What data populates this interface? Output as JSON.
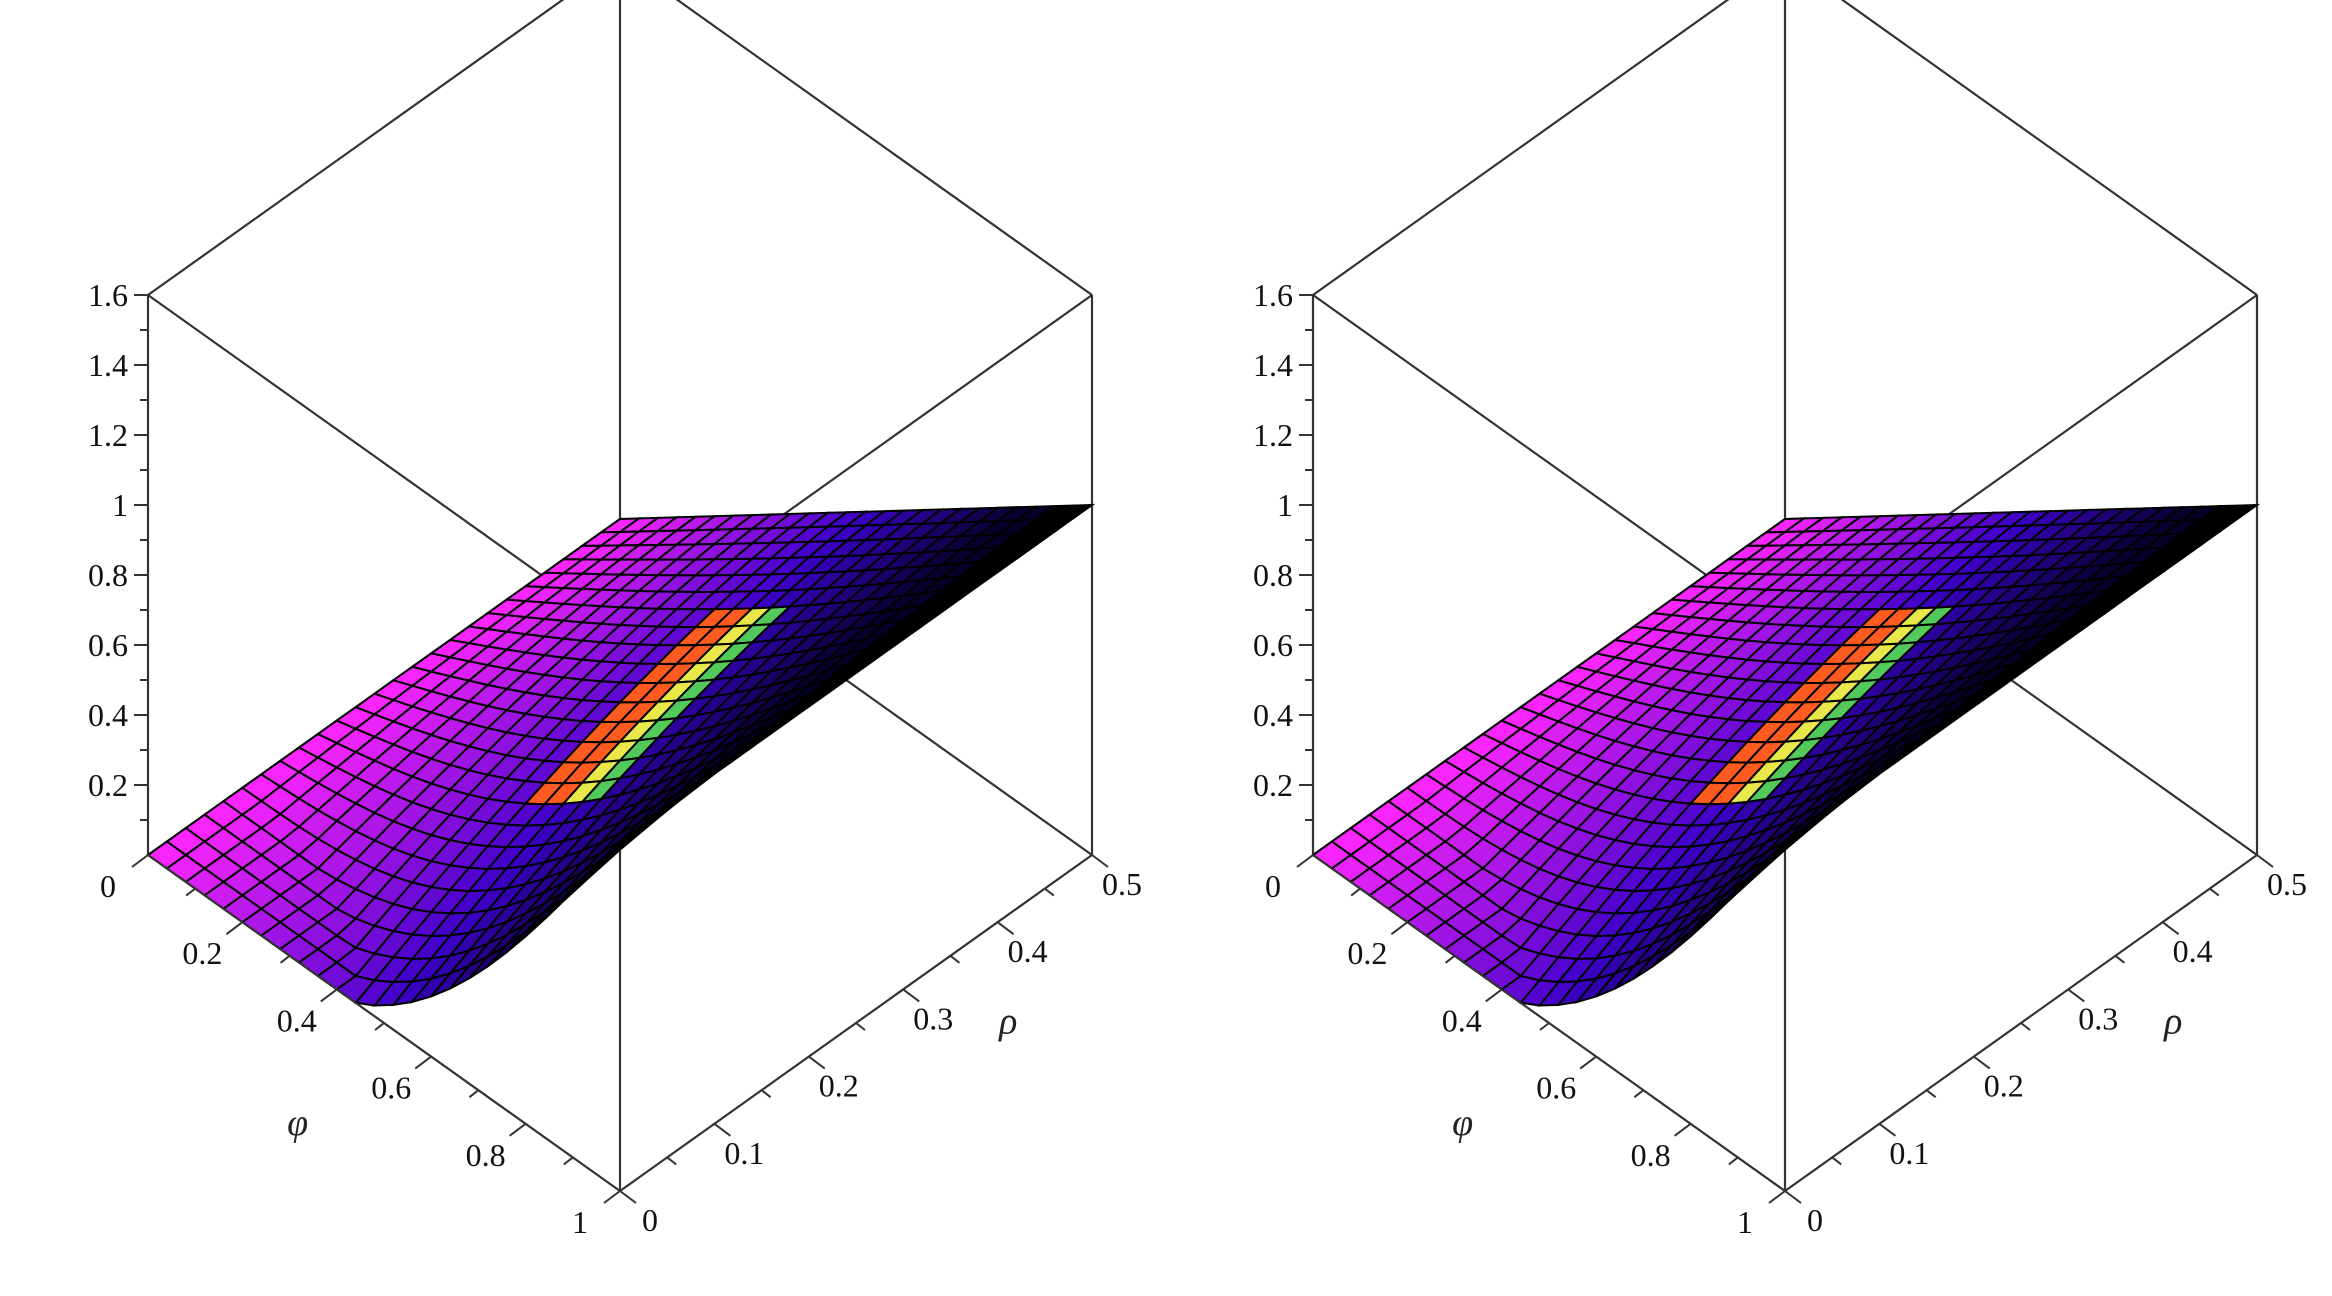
{
  "chart_data": [
    {
      "type": "surface",
      "title": "",
      "xlabel": "φ",
      "ylabel": "ρ",
      "zlabel": "",
      "xlim": [
        0,
        1
      ],
      "ylim": [
        0,
        0.5
      ],
      "zlim": [
        0,
        1.6
      ],
      "x_ticks": [
        "0",
        "0.2",
        "0.4",
        "0.6",
        "0.8",
        "1"
      ],
      "y_ticks": [
        "0",
        "0.1",
        "0.2",
        "0.3",
        "0.4",
        "0.5"
      ],
      "z_ticks": [
        "0.2",
        "0.4",
        "0.6",
        "0.8",
        "1",
        "1.2",
        "1.4",
        "1.6"
      ],
      "grid_resolution": [
        25,
        25
      ],
      "samples": [
        {
          "phi": 0,
          "rho": 0,
          "z": 0
        },
        {
          "phi": 0,
          "rho": 0.25,
          "z": 0
        },
        {
          "phi": 0,
          "rho": 0.5,
          "z": 0
        },
        {
          "phi": 0.5,
          "rho": 0.5,
          "z": 0.5
        },
        {
          "phi": 1,
          "rho": 0,
          "z": 1
        },
        {
          "phi": 1,
          "rho": 0.25,
          "z": 1
        },
        {
          "phi": 1,
          "rho": 0.5,
          "z": 1
        },
        {
          "phi": 0.5,
          "rho": 0,
          "z": 0.13
        }
      ],
      "colormap": [
        "#ff33ff",
        "#3300cc",
        "#ffff00",
        "#ff3300",
        "#000000"
      ]
    },
    {
      "type": "surface",
      "title": "",
      "xlabel": "φ",
      "ylabel": "ρ",
      "zlabel": "",
      "xlim": [
        0,
        1
      ],
      "ylim": [
        0,
        0.5
      ],
      "zlim": [
        0,
        1.6
      ],
      "x_ticks": [
        "0",
        "0.2",
        "0.4",
        "0.6",
        "0.8",
        "1"
      ],
      "y_ticks": [
        "0",
        "0.1",
        "0.2",
        "0.3",
        "0.4",
        "0.5"
      ],
      "z_ticks": [
        "0.2",
        "0.4",
        "0.6",
        "0.8",
        "1",
        "1.2",
        "1.4",
        "1.6"
      ],
      "grid_resolution": [
        25,
        25
      ],
      "samples": [
        {
          "phi": 0,
          "rho": 0,
          "z": 0
        },
        {
          "phi": 0,
          "rho": 0.25,
          "z": 0
        },
        {
          "phi": 0,
          "rho": 0.5,
          "z": 0
        },
        {
          "phi": 0.5,
          "rho": 0.5,
          "z": 0.5
        },
        {
          "phi": 1,
          "rho": 0,
          "z": 1
        },
        {
          "phi": 1,
          "rho": 0.25,
          "z": 1
        },
        {
          "phi": 1,
          "rho": 0.5,
          "z": 1
        },
        {
          "phi": 0.5,
          "rho": 0,
          "z": 0.13
        }
      ],
      "colormap": [
        "#ff33ff",
        "#3300cc",
        "#ffff00",
        "#ff3300",
        "#000000"
      ]
    }
  ]
}
